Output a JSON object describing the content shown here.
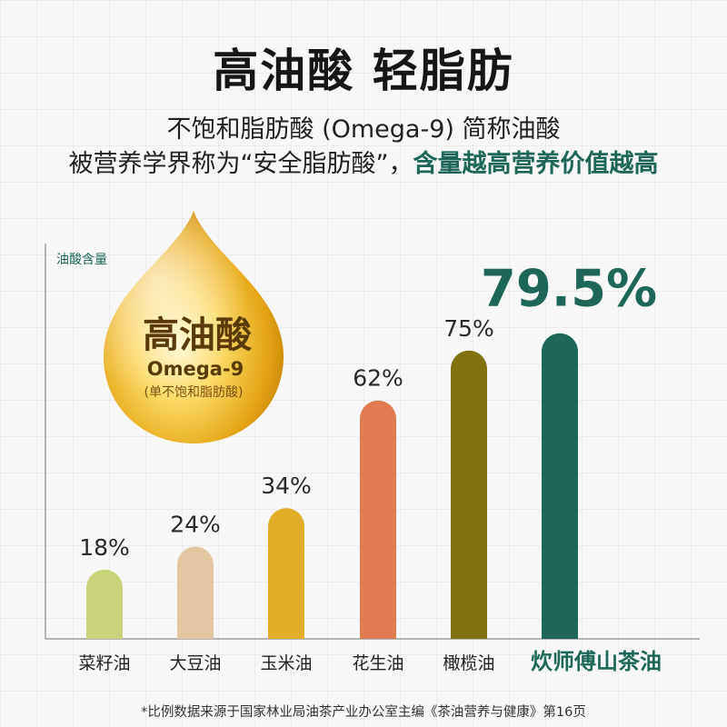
{
  "headline": "高油酸  轻脂肪",
  "subtitle_line1": "不饱和脂肪酸 (Omega-9) 简称油酸",
  "subtitle_line2_prefix": "被营养学界称为“安全脂肪酸”，",
  "subtitle_line2_highlight": "含量越高营养价值越高",
  "badge": {
    "title": "高油酸",
    "subtitle": "Omega-9",
    "note": "(单不饱和脂肪酸)"
  },
  "footnote": "*比例数据来源于国家林业局油茶产业办公室主编《茶油营养与健康》第16页",
  "colors": {
    "accent": "#1e6658",
    "rapeseed": "#c8d37a",
    "soybean": "#e2c7a2",
    "corn": "#e3ac2a",
    "peanut": "#e07b52",
    "olive": "#7f720f",
    "camellia": "#1e6658"
  },
  "chart_data": {
    "type": "bar",
    "ylabel": "油酸含量",
    "categories": [
      "菜籽油",
      "大豆油",
      "玉米油",
      "花生油",
      "橄榄油",
      "炊师傅山茶油"
    ],
    "values": [
      18,
      24,
      34,
      62,
      75,
      79.5
    ],
    "value_labels": [
      "18%",
      "24%",
      "34%",
      "62%",
      "75%",
      "79.5%"
    ],
    "ylim": [
      0,
      100
    ],
    "grid": false,
    "highlight_index": 5
  }
}
